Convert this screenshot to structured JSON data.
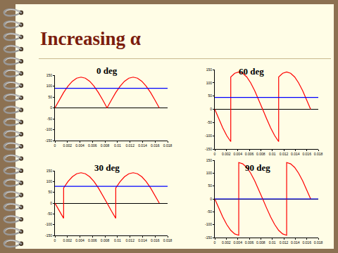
{
  "title": "Increasing α",
  "chart_data": [
    {
      "type": "line",
      "title": "0 deg",
      "grid": false,
      "xlim": [
        0,
        0.018
      ],
      "xticks": [
        0,
        0.002,
        0.004,
        0.006,
        0.008,
        0.01,
        0.012,
        0.014,
        0.016,
        0.018
      ],
      "ylim": [
        -150,
        150
      ],
      "yticks": [
        -150,
        -100,
        -50,
        0,
        50,
        100,
        150
      ],
      "series": [
        {
          "color": "#ff0000",
          "x": [
            0,
            0.00069,
            0.00139,
            0.00208,
            0.00278,
            0.00347,
            0.00417,
            0.00486,
            0.00556,
            0.00625,
            0.00694,
            0.00764,
            0.00833,
            0.00903,
            0.00972,
            0.01042,
            0.01111,
            0.01181,
            0.0125,
            0.01319,
            0.01389,
            0.01458,
            0.01528,
            0.01597,
            0.01667
          ],
          "values": [
            0,
            36.5,
            70.5,
            99.7,
            122.1,
            136.2,
            141,
            136.2,
            122.1,
            99.7,
            70.5,
            36.5,
            0,
            36.5,
            70.5,
            99.7,
            122.1,
            136.2,
            141,
            136.2,
            122.1,
            99.7,
            70.5,
            36.5,
            0
          ]
        },
        {
          "color": "#0000ff",
          "x": [
            0,
            0.018
          ],
          "values": [
            90,
            90
          ]
        }
      ]
    },
    {
      "type": "line",
      "title": "60 deg",
      "grid": false,
      "xlim": [
        0,
        0.018
      ],
      "xticks": [
        0,
        0.002,
        0.004,
        0.006,
        0.008,
        0.01,
        0.012,
        0.014,
        0.016,
        0.018
      ],
      "ylim": [
        -150,
        150
      ],
      "yticks": [
        -150,
        -100,
        -50,
        0,
        50,
        100,
        150
      ],
      "series": [
        {
          "color": "#ff0000",
          "x": [
            0,
            0.00069,
            0.00139,
            0.00208,
            0.00278,
            0.00278,
            0.00347,
            0.00417,
            0.00486,
            0.00556,
            0.00625,
            0.00694,
            0.00764,
            0.00833,
            0.00903,
            0.00972,
            0.01042,
            0.01111,
            0.01111,
            0.01181,
            0.0125,
            0.01319,
            0.01389,
            0.01458,
            0.01528,
            0.01597,
            0.01667
          ],
          "values": [
            0,
            -36.5,
            -70.5,
            -99.7,
            -122.1,
            122.1,
            136.2,
            141,
            136.2,
            122.1,
            99.7,
            70.5,
            36.5,
            0,
            -36.5,
            -70.5,
            -99.7,
            -122.1,
            122.1,
            136.2,
            141,
            136.2,
            122.1,
            99.7,
            70.5,
            36.5,
            0
          ]
        },
        {
          "color": "#0000ff",
          "x": [
            0,
            0.018
          ],
          "values": [
            45,
            45
          ]
        }
      ]
    },
    {
      "type": "line",
      "title": "30 deg",
      "grid": false,
      "xlim": [
        0,
        0.018
      ],
      "xticks": [
        0,
        0.002,
        0.004,
        0.006,
        0.008,
        0.01,
        0.012,
        0.014,
        0.016,
        0.018
      ],
      "ylim": [
        -150,
        150
      ],
      "yticks": [
        -150,
        -100,
        -50,
        0,
        50,
        100,
        150
      ],
      "series": [
        {
          "color": "#ff0000",
          "x": [
            0,
            0.00069,
            0.00139,
            0.00139,
            0.00208,
            0.00278,
            0.00347,
            0.00417,
            0.00486,
            0.00556,
            0.00625,
            0.00694,
            0.00764,
            0.00833,
            0.00903,
            0.00972,
            0.00972,
            0.01042,
            0.01111,
            0.01181,
            0.0125,
            0.01319,
            0.01389,
            0.01458,
            0.01528,
            0.01597,
            0.01667
          ],
          "values": [
            0,
            -36.5,
            -70.5,
            70.5,
            99.7,
            122.1,
            136.2,
            141,
            136.2,
            122.1,
            99.7,
            70.5,
            36.5,
            0,
            -36.5,
            -70.5,
            70.5,
            99.7,
            122.1,
            136.2,
            141,
            136.2,
            122.1,
            99.7,
            70.5,
            36.5,
            0
          ]
        },
        {
          "color": "#0000ff",
          "x": [
            0,
            0.018
          ],
          "values": [
            78,
            78
          ]
        }
      ]
    },
    {
      "type": "line",
      "title": "90 deg",
      "grid": false,
      "xlim": [
        0,
        0.018
      ],
      "xticks": [
        0,
        0.002,
        0.004,
        0.006,
        0.008,
        0.01,
        0.012,
        0.014,
        0.016,
        0.018
      ],
      "ylim": [
        -150,
        150
      ],
      "yticks": [
        -150,
        -100,
        -50,
        0,
        50,
        100,
        150
      ],
      "series": [
        {
          "color": "#ff0000",
          "x": [
            0,
            0.00069,
            0.00139,
            0.00208,
            0.00278,
            0.00347,
            0.00417,
            0.00417,
            0.00486,
            0.00556,
            0.00625,
            0.00694,
            0.00764,
            0.00833,
            0.00903,
            0.00972,
            0.01042,
            0.01111,
            0.01181,
            0.0125,
            0.0125,
            0.01319,
            0.01389,
            0.01458,
            0.01528,
            0.01597,
            0.01667
          ],
          "values": [
            0,
            -36.5,
            -70.5,
            -99.7,
            -122.1,
            -136.2,
            -141,
            141,
            136.2,
            122.1,
            99.7,
            70.5,
            36.5,
            0,
            -36.5,
            -70.5,
            -99.7,
            -122.1,
            -136.2,
            -141,
            141,
            136.2,
            122.1,
            99.7,
            70.5,
            36.5,
            0
          ]
        },
        {
          "color": "#0000ff",
          "x": [
            0,
            0.018
          ],
          "values": [
            0,
            0
          ]
        }
      ]
    }
  ]
}
